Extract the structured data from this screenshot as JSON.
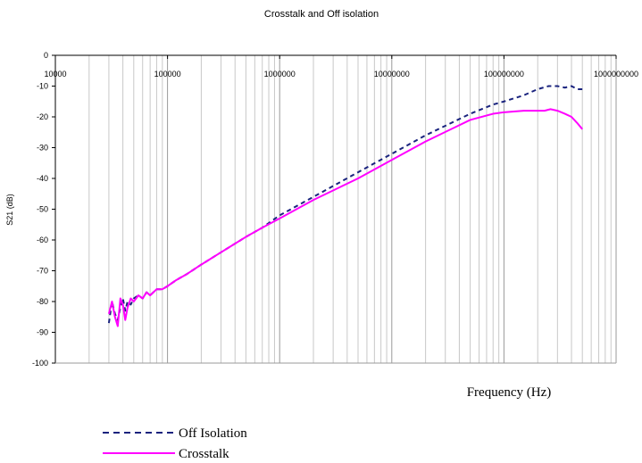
{
  "chart_data": {
    "type": "line",
    "title": "Crosstalk and Off isolation",
    "xlabel": "Frequency (Hz)",
    "ylabel": "S21 (dB)",
    "x_scale": "log",
    "xlim": [
      10000,
      1000000000
    ],
    "ylim": [
      -100,
      0
    ],
    "x_ticks": [
      "10000",
      "100000",
      "1000000",
      "10000000",
      "100000000",
      "1000000000"
    ],
    "y_ticks": [
      "0",
      "-10",
      "-20",
      "-30",
      "-40",
      "-50",
      "-60",
      "-70",
      "-80",
      "-90",
      "-100"
    ],
    "grid": true,
    "legend_position": "bottom-left",
    "series": [
      {
        "name": "Off Isolation",
        "color": "#1a237e",
        "style": "dashed",
        "x": [
          30000,
          32000,
          34000,
          36000,
          38000,
          40000,
          42000,
          44000,
          47000,
          50000,
          55000,
          60000,
          65000,
          70000,
          80000,
          90000,
          100000,
          120000,
          150000,
          200000,
          300000,
          500000,
          700000,
          1000000,
          2000000,
          5000000,
          10000000,
          20000000,
          50000000,
          80000000,
          100000000,
          150000000,
          200000000,
          250000000,
          300000000,
          350000000,
          400000000,
          450000000,
          500000000
        ],
        "y": [
          -87,
          -80,
          -84,
          -86,
          -82,
          -79,
          -83,
          -80,
          -81,
          -79,
          -78,
          -79,
          -77,
          -78,
          -76,
          -76,
          -75,
          -73,
          -71,
          -68,
          -64,
          -59,
          -56,
          -52,
          -46,
          -38,
          -32,
          -26,
          -19,
          -16,
          -15,
          -13,
          -11,
          -10,
          -10,
          -10.5,
          -10,
          -11,
          -11
        ]
      },
      {
        "name": "Crosstalk",
        "color": "#ff00ff",
        "style": "solid",
        "x": [
          30000,
          32000,
          34000,
          36000,
          38000,
          40000,
          42000,
          44000,
          47000,
          50000,
          55000,
          60000,
          65000,
          70000,
          80000,
          90000,
          100000,
          120000,
          150000,
          200000,
          300000,
          500000,
          700000,
          1000000,
          2000000,
          5000000,
          10000000,
          20000000,
          50000000,
          80000000,
          100000000,
          150000000,
          200000000,
          230000000,
          260000000,
          300000000,
          350000000,
          400000000,
          450000000,
          500000000
        ],
        "y": [
          -84,
          -80,
          -85,
          -88,
          -79,
          -81,
          -86,
          -82,
          -79,
          -80,
          -78,
          -79,
          -77,
          -78,
          -76,
          -76,
          -75,
          -73,
          -71,
          -68,
          -64,
          -59,
          -56,
          -53,
          -47,
          -40,
          -34,
          -28,
          -21,
          -19,
          -18.5,
          -18,
          -18,
          -18,
          -17.5,
          -18,
          -19,
          -20,
          -22,
          -24
        ]
      }
    ]
  }
}
